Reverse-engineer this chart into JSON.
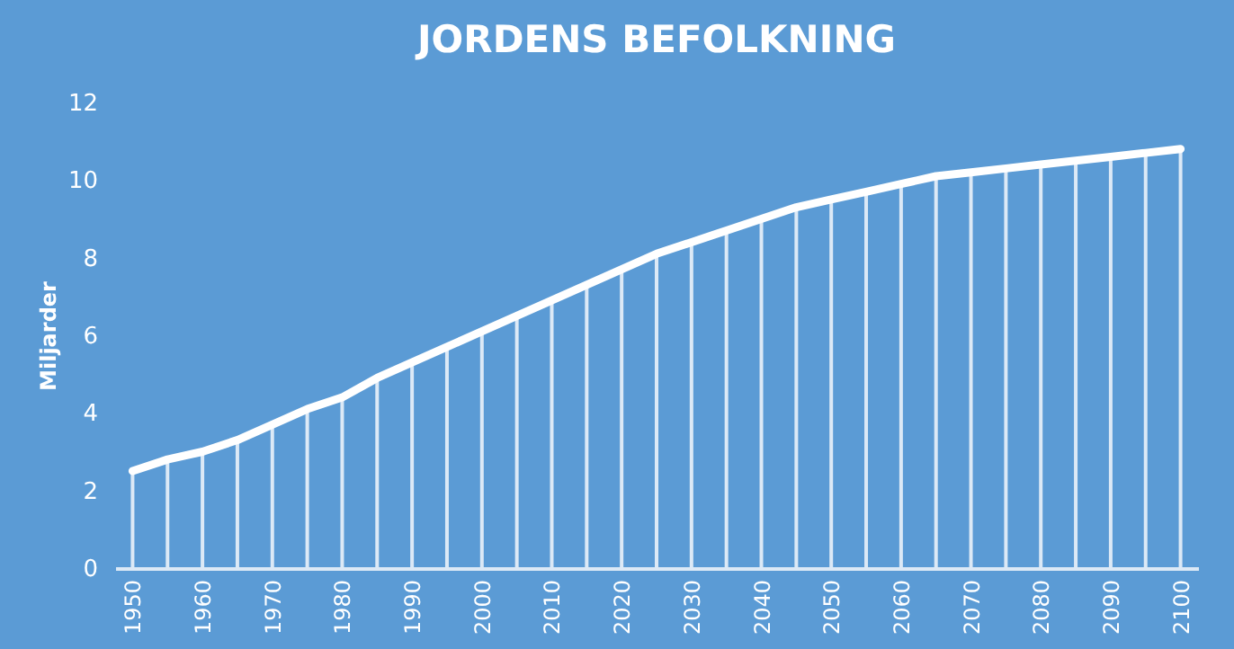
{
  "chart_data": {
    "type": "line",
    "title": "JORDENS BEFOLKNING",
    "ylabel": "Miljarder",
    "categories": [
      "1950",
      null,
      "1960",
      null,
      "1970",
      null,
      "1980",
      null,
      "1990",
      null,
      "2000",
      null,
      "2010",
      null,
      "2020",
      null,
      "2030",
      null,
      "2040",
      null,
      "2050",
      null,
      "2060",
      null,
      "2070",
      null,
      "2080",
      null,
      "2090",
      null,
      "2100"
    ],
    "series": [
      {
        "type": "bar",
        "color": "#dce9f6",
        "values": [
          2.5,
          2.8,
          3.0,
          3.3,
          3.7,
          4.1,
          4.4,
          4.9,
          5.3,
          5.7,
          6.1,
          6.5,
          6.9,
          7.3,
          7.7,
          8.1,
          8.4,
          8.7,
          9.0,
          9.3,
          9.5,
          9.7,
          9.9,
          10.1,
          10.2,
          10.3,
          10.4,
          10.5,
          10.6,
          10.7,
          10.8
        ]
      },
      {
        "color": "#ffffff",
        "values": [
          2.5,
          2.8,
          3.0,
          3.3,
          3.7,
          4.1,
          4.4,
          4.9,
          5.3,
          5.7,
          6.1,
          6.5,
          6.9,
          7.3,
          7.7,
          8.1,
          8.4,
          8.7,
          9.0,
          9.3,
          9.5,
          9.7,
          9.9,
          10.1,
          10.2,
          10.3,
          10.4,
          10.5,
          10.6,
          10.7,
          10.8
        ]
      }
    ],
    "ylim": [
      0,
      12
    ],
    "yticks": [
      0,
      2,
      4,
      6,
      8,
      10,
      12
    ],
    "grid": false,
    "legend": false,
    "marker": "none",
    "line_style": "solid"
  }
}
